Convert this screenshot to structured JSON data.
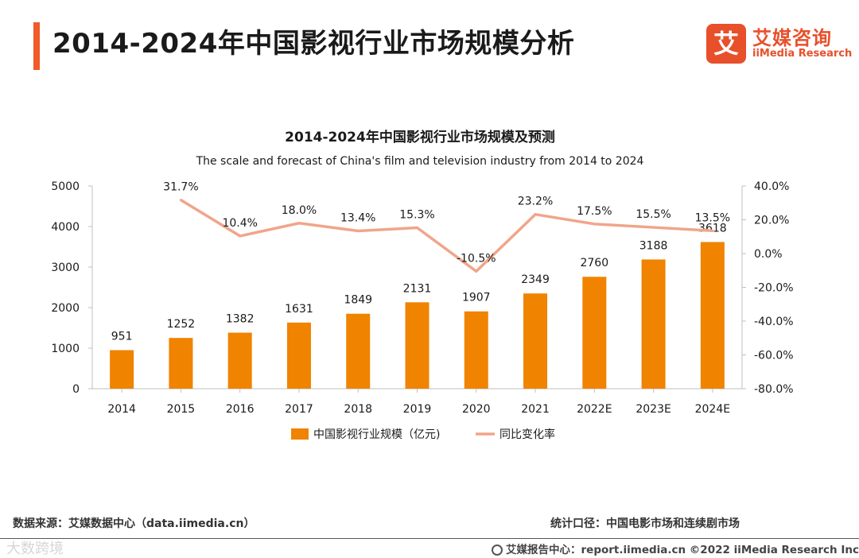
{
  "header": {
    "title": "2014-2024年中国影视行业市场规模分析",
    "logo_mark": "艾",
    "logo_cn": "艾媒咨询",
    "logo_en": "iiMedia Research"
  },
  "colors": {
    "accent": "#ef5b2a",
    "bar": "#f08300",
    "line": "#f0a58a",
    "brand": "#e8502b"
  },
  "chart_data": {
    "type": "bar",
    "title": "2014-2024年中国影视行业市场规模及预测",
    "subtitle": "The scale and forecast of China's film and television industry from 2014 to 2024",
    "categories": [
      "2014",
      "2015",
      "2016",
      "2017",
      "2018",
      "2019",
      "2020",
      "2021",
      "2022E",
      "2023E",
      "2024E"
    ],
    "series": [
      {
        "name": "中国影视行业规模（亿元)",
        "type": "bar",
        "axis": "left",
        "values": [
          951,
          1252,
          1382,
          1631,
          1849,
          2131,
          1907,
          2349,
          2760,
          3188,
          3618
        ],
        "labels": [
          "951",
          "1252",
          "1382",
          "1631",
          "1849",
          "2131",
          "1907",
          "2349",
          "2760",
          "3188",
          "3618"
        ]
      },
      {
        "name": "同比变化率",
        "type": "line",
        "axis": "right",
        "values": [
          null,
          31.7,
          10.4,
          18.0,
          13.4,
          15.3,
          -10.5,
          23.2,
          17.5,
          15.5,
          13.5
        ],
        "labels": [
          "",
          "31.7%",
          "10.4%",
          "18.0%",
          "13.4%",
          "15.3%",
          "-10.5%",
          "23.2%",
          "17.5%",
          "15.5%",
          "13.5%"
        ]
      }
    ],
    "y_left": {
      "min": 0,
      "max": 5000,
      "ticks": [
        "0",
        "1000",
        "2000",
        "3000",
        "4000",
        "5000"
      ]
    },
    "y_right": {
      "min": -80,
      "max": 40,
      "ticks": [
        "-80.0%",
        "-60.0%",
        "-40.0%",
        "-20.0%",
        "0.0%",
        "20.0%",
        "40.0%"
      ]
    },
    "grid": false,
    "legend_position": "bottom"
  },
  "footer": {
    "source": "数据来源：艾媒数据中心（data.iimedia.cn）",
    "scope": "统计口径：中国电影市场和连续剧市场",
    "report": "艾媒报告中心：report.iimedia.cn  ©2022  iiMedia Research  Inc",
    "watermark": "大数跨境"
  }
}
